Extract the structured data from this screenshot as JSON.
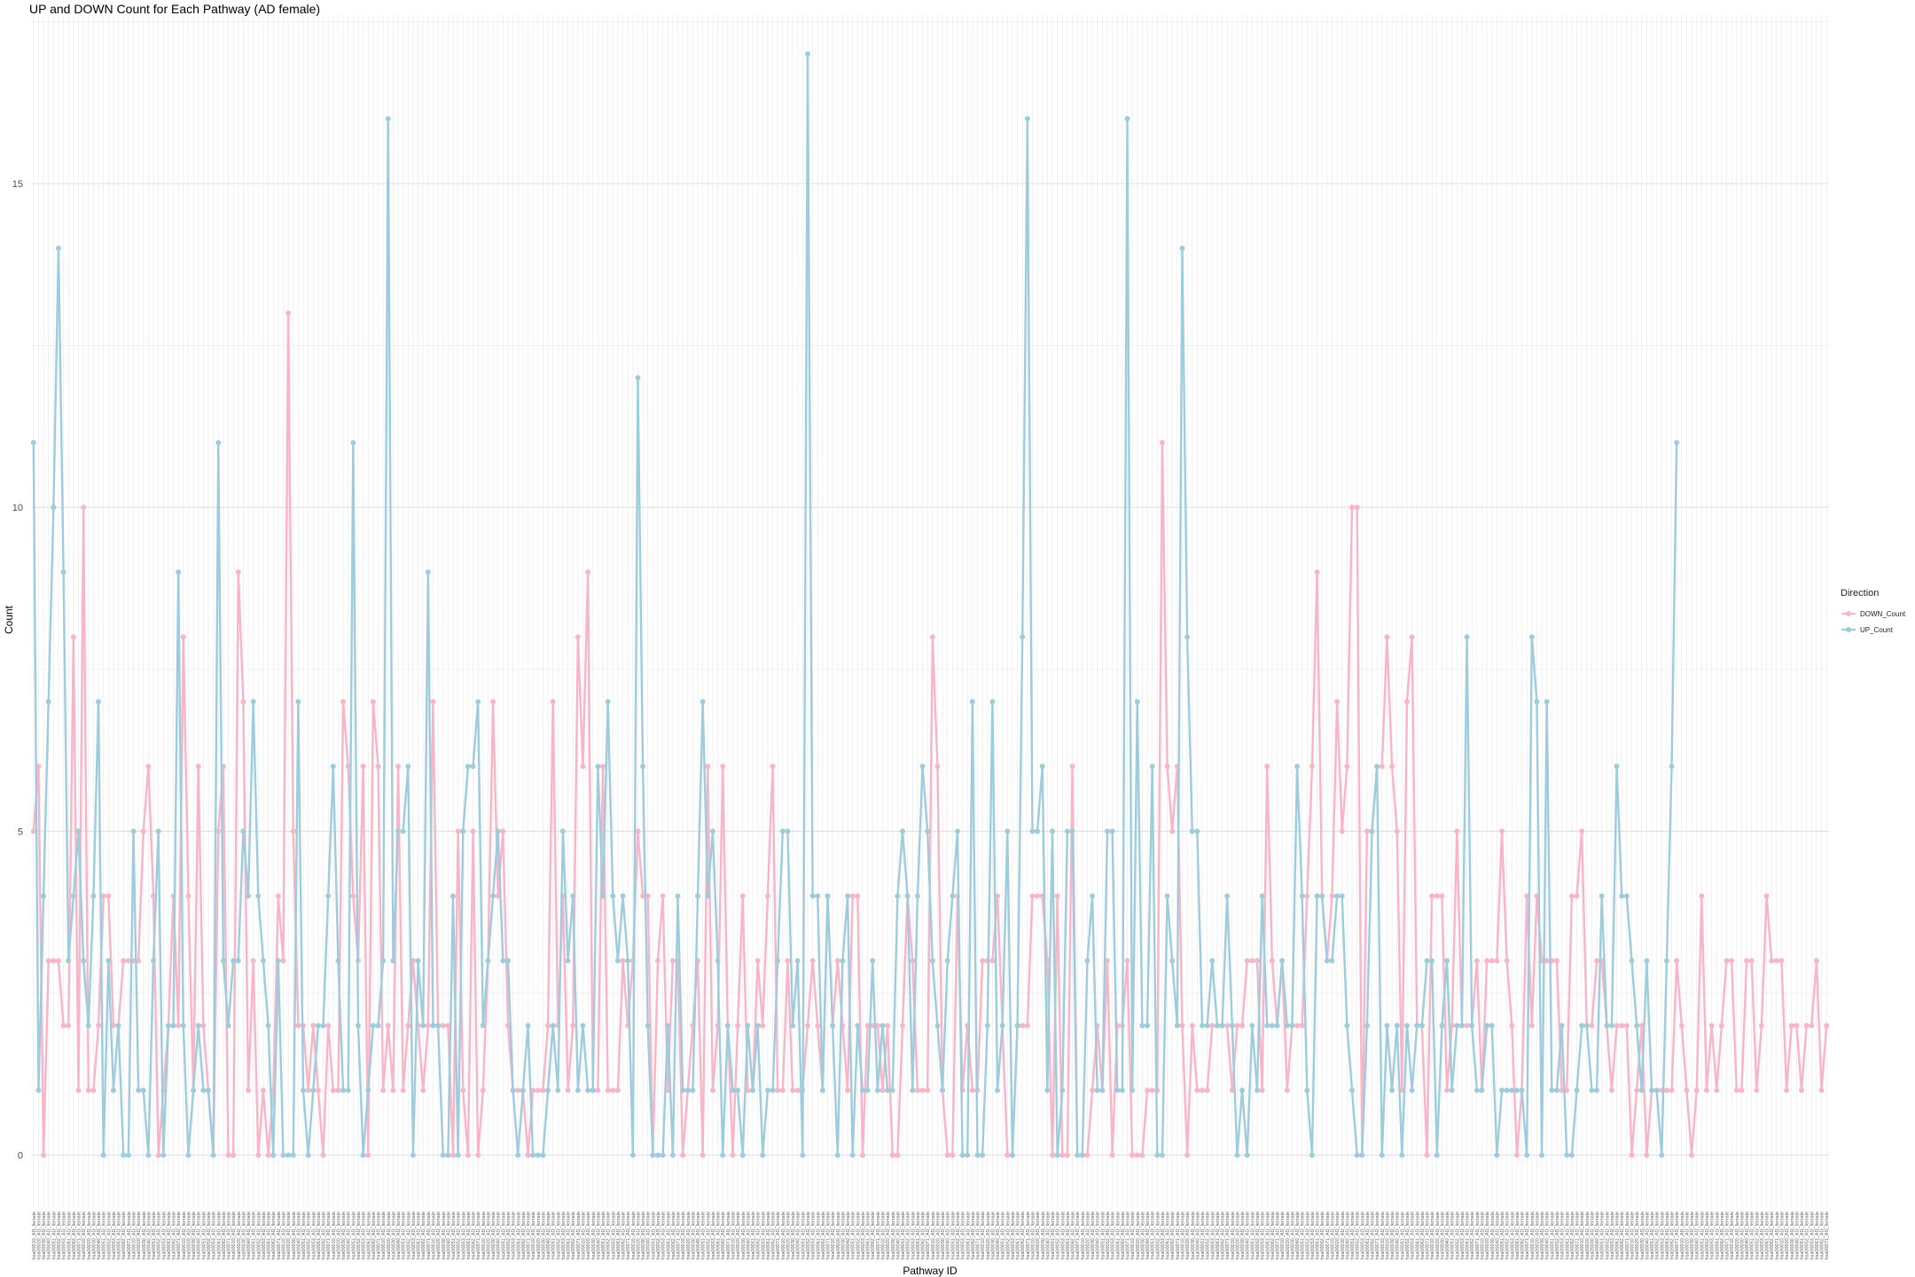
{
  "colors": {
    "down": "#F9B4C8",
    "up": "#9DCDDD",
    "grid": "#EBEBEB"
  },
  "chart_data": {
    "type": "line",
    "title": "UP and DOWN Count for Each Pathway (AD female)",
    "xlabel": "Pathway ID",
    "ylabel": "Count",
    "ylim": [
      -0.8,
      17.6
    ],
    "y_ticks": [
      0,
      5,
      10,
      15
    ],
    "x_tick_labels": [
      "hsa00010_AD_female",
      "hsa00020_AD_female",
      "hsa00030_AD_female",
      "hsa00040_AD_female",
      "hsa00051_AD_female",
      "hsa00052_AD_female",
      "hsa00053_AD_female",
      "hsa00061_AD_female",
      "hsa00062_AD_female",
      "hsa00071_AD_female"
    ],
    "grid": true,
    "legend": {
      "title": "Direction",
      "position": "right"
    },
    "series": [
      {
        "name": "DOWN_Count",
        "values": [
          5,
          6,
          0,
          3,
          3,
          3,
          2,
          2,
          8,
          1,
          10,
          1,
          1,
          2,
          4,
          4,
          2,
          2,
          3,
          3,
          3,
          3,
          5,
          6,
          4,
          0,
          1,
          2,
          4,
          2,
          8,
          4,
          1,
          6,
          2,
          1,
          0,
          5,
          6,
          0,
          0,
          9,
          7,
          1,
          3,
          0,
          1,
          0,
          1,
          4,
          3,
          13,
          5,
          2,
          2,
          1,
          2,
          1,
          0,
          2,
          1,
          1,
          7,
          6,
          4,
          3,
          6,
          0,
          7,
          6,
          1,
          2,
          1,
          6,
          1,
          2,
          3,
          2,
          1,
          2,
          7,
          2,
          2,
          2,
          0,
          5,
          1,
          0,
          5,
          0,
          1,
          3,
          7,
          4,
          5,
          2,
          1,
          1,
          1,
          0,
          1,
          1,
          1,
          2,
          7,
          2,
          4,
          1,
          2,
          8,
          6,
          9,
          1,
          1,
          6,
          1,
          1,
          1,
          3,
          2,
          3,
          5,
          4,
          4,
          0,
          3,
          4,
          1,
          3,
          3,
          0,
          1,
          2,
          3,
          0,
          6,
          1,
          2,
          6,
          2,
          0,
          2,
          4,
          1,
          1,
          3,
          2,
          4,
          6,
          1,
          1,
          3,
          1,
          1,
          1,
          2,
          3,
          2,
          1,
          4,
          2,
          3,
          2,
          1,
          4,
          4,
          0,
          2,
          2,
          2,
          1,
          2,
          0,
          0,
          2,
          4,
          3,
          1,
          1,
          1,
          8,
          6,
          1,
          0,
          0,
          4,
          1,
          2,
          1,
          1,
          3,
          3,
          3,
          4,
          2,
          0,
          0,
          2,
          2,
          2,
          4,
          4,
          4,
          3,
          0,
          4,
          0,
          0,
          6,
          0,
          0,
          0,
          1,
          2,
          1,
          3,
          0,
          2,
          2,
          3,
          0,
          0,
          0,
          1,
          1,
          1,
          11,
          6,
          5,
          6,
          2,
          0,
          2,
          1,
          1,
          1,
          2,
          2,
          2,
          2,
          1,
          2,
          2,
          3,
          3,
          3,
          1,
          6,
          3,
          2,
          3,
          1,
          2,
          2,
          2,
          4,
          6,
          9,
          4,
          3,
          4,
          7,
          5,
          6,
          10,
          10,
          0,
          5,
          5,
          6,
          6,
          8,
          6,
          5,
          1,
          7,
          8,
          2,
          2,
          0,
          4,
          4,
          4,
          1,
          2,
          5,
          2,
          2,
          2,
          3,
          1,
          3,
          3,
          3,
          5,
          3,
          2,
          0,
          1,
          4,
          2,
          4,
          3,
          3,
          3,
          3,
          1,
          1,
          4,
          4,
          5,
          2,
          2,
          3,
          3,
          2,
          1,
          2,
          2,
          2,
          0,
          1,
          2,
          0,
          1,
          1,
          1,
          1,
          1,
          3,
          2,
          1,
          0,
          1,
          4,
          1,
          2,
          1,
          2,
          3,
          3,
          1,
          1,
          3,
          3,
          1,
          2,
          4,
          3,
          3,
          3,
          1,
          2,
          2,
          1,
          2,
          2,
          3,
          1,
          2
        ]
      },
      {
        "name": "UP_Count",
        "values": [
          11,
          1,
          4,
          7,
          10,
          14,
          9,
          3,
          4,
          5,
          3,
          2,
          4,
          7,
          0,
          3,
          1,
          2,
          0,
          0,
          5,
          1,
          1,
          0,
          3,
          5,
          0,
          2,
          2,
          9,
          2,
          0,
          1,
          2,
          1,
          1,
          0,
          11,
          3,
          2,
          3,
          3,
          5,
          4,
          7,
          4,
          3,
          2,
          0,
          3,
          0,
          0,
          0,
          7,
          1,
          0,
          1,
          2,
          2,
          4,
          6,
          3,
          1,
          1,
          11,
          2,
          0,
          1,
          2,
          2,
          3,
          16,
          3,
          5,
          5,
          6,
          0,
          3,
          2,
          9,
          2,
          2,
          0,
          0,
          4,
          0,
          5,
          6,
          6,
          7,
          2,
          3,
          4,
          5,
          3,
          3,
          1,
          0,
          1,
          2,
          0,
          0,
          0,
          1,
          2,
          1,
          5,
          3,
          4,
          1,
          2,
          1,
          1,
          6,
          4,
          7,
          4,
          3,
          4,
          3,
          0,
          12,
          6,
          2,
          0,
          0,
          0,
          2,
          0,
          4,
          1,
          1,
          1,
          4,
          7,
          4,
          5,
          3,
          0,
          2,
          1,
          1,
          0,
          2,
          1,
          2,
          0,
          1,
          1,
          3,
          5,
          5,
          2,
          3,
          0,
          17,
          4,
          4,
          1,
          4,
          2,
          0,
          3,
          4,
          0,
          2,
          1,
          1,
          3,
          1,
          2,
          1,
          1,
          4,
          5,
          4,
          1,
          4,
          6,
          5,
          3,
          2,
          1,
          3,
          4,
          5,
          0,
          0,
          7,
          0,
          0,
          2,
          7,
          1,
          2,
          5,
          0,
          2,
          8,
          16,
          5,
          5,
          6,
          1,
          5,
          0,
          1,
          5,
          5,
          0,
          0,
          3,
          4,
          1,
          1,
          5,
          5,
          1,
          1,
          16,
          1,
          7,
          2,
          2,
          6,
          0,
          0,
          4,
          3,
          2,
          14,
          8,
          5,
          5,
          2,
          2,
          3,
          2,
          2,
          4,
          2,
          0,
          1,
          0,
          2,
          1,
          4,
          2,
          2,
          2,
          3,
          2,
          2,
          6,
          4,
          1,
          0,
          4,
          4,
          3,
          3,
          4,
          4,
          2,
          1,
          0,
          0,
          2,
          5,
          6,
          0,
          2,
          1,
          2,
          0,
          2,
          1,
          2,
          2,
          3,
          3,
          0,
          2,
          3,
          1,
          2,
          2,
          8,
          2,
          1,
          1,
          2,
          2,
          0,
          1,
          1,
          1,
          1,
          1,
          0,
          8,
          7,
          0,
          7,
          1,
          1,
          2,
          0,
          0,
          1,
          2,
          2,
          1,
          1,
          4,
          2,
          2,
          6,
          4,
          4,
          3,
          2,
          1,
          3,
          1,
          1,
          0,
          3,
          6,
          11
        ]
      }
    ]
  }
}
